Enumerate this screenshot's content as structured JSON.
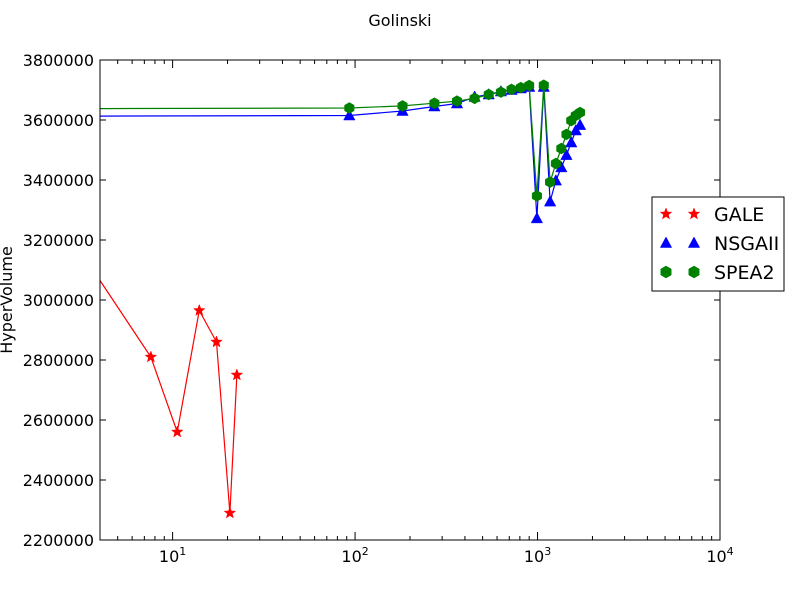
{
  "chart_data": {
    "type": "line",
    "title": "Golinski",
    "xlabel": "",
    "ylabel": "HyperVolume",
    "xscale": "log",
    "xlim": [
      4,
      10000
    ],
    "ylim": [
      2200000,
      3800000
    ],
    "xticks": [
      {
        "value": 10,
        "base": "10",
        "exp": "1"
      },
      {
        "value": 100,
        "base": "10",
        "exp": "2"
      },
      {
        "value": 1000,
        "base": "10",
        "exp": "3"
      },
      {
        "value": 10000,
        "base": "10",
        "exp": "4"
      }
    ],
    "yticks": [
      {
        "value": 2200000,
        "label": "2200000"
      },
      {
        "value": 2400000,
        "label": "2400000"
      },
      {
        "value": 2600000,
        "label": "2600000"
      },
      {
        "value": 2800000,
        "label": "2800000"
      },
      {
        "value": 3000000,
        "label": "3000000"
      },
      {
        "value": 3200000,
        "label": "3200000"
      },
      {
        "value": 3400000,
        "label": "3400000"
      },
      {
        "value": 3600000,
        "label": "3600000"
      },
      {
        "value": 3800000,
        "label": "3800000"
      }
    ],
    "grid": false,
    "legend_position": "right",
    "series": [
      {
        "name": "GALE",
        "color": "#ff0000",
        "marker": "star",
        "x": [
          4,
          7.6,
          10.6,
          14,
          17.4,
          20.6,
          22.5
        ],
        "y": [
          3065000,
          2810000,
          2560000,
          2965000,
          2860000,
          2290000,
          2750000
        ]
      },
      {
        "name": "NSGAII",
        "color": "#0000ff",
        "marker": "triangle",
        "x": [
          4,
          93,
          182,
          272,
          362,
          452,
          540,
          630,
          720,
          810,
          900,
          992,
          1082,
          1172,
          1260,
          1350,
          1440,
          1530,
          1620,
          1710
        ],
        "y": [
          3613000,
          3615000,
          3630000,
          3645000,
          3655000,
          3677000,
          3685000,
          3695000,
          3700000,
          3705000,
          3710000,
          3272000,
          3710000,
          3328000,
          3398000,
          3442000,
          3483000,
          3525000,
          3565000,
          3583000
        ]
      },
      {
        "name": "SPEA2",
        "color": "#008000",
        "marker": "hexagon",
        "x": [
          4,
          93,
          182,
          272,
          362,
          452,
          540,
          630,
          720,
          810,
          900,
          992,
          1082,
          1172,
          1260,
          1350,
          1440,
          1530,
          1620,
          1710
        ],
        "y": [
          3638000,
          3640000,
          3647000,
          3656000,
          3663000,
          3672000,
          3685000,
          3693000,
          3702000,
          3708000,
          3715000,
          3347000,
          3716000,
          3393000,
          3455000,
          3505000,
          3552000,
          3598000,
          3615000,
          3625000
        ]
      }
    ]
  }
}
